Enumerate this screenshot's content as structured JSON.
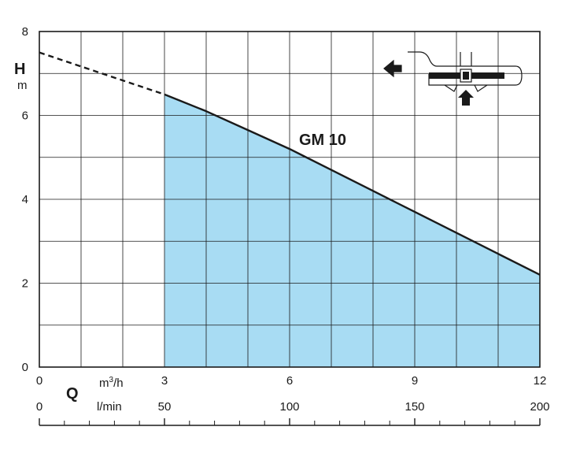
{
  "chart_data": {
    "type": "area",
    "series": [
      {
        "name": "GM 10",
        "dashed_part": {
          "x": [
            0,
            3
          ],
          "y": [
            7.5,
            6.5
          ]
        },
        "x": [
          3,
          4,
          5,
          6,
          7,
          8,
          9,
          10,
          11,
          12
        ],
        "y": [
          6.5,
          6.1,
          5.65,
          5.2,
          4.7,
          4.2,
          3.7,
          3.2,
          2.7,
          2.2
        ]
      }
    ],
    "shaded_range": [
      3,
      12
    ],
    "xlim": [
      0,
      12
    ],
    "ylim": [
      0,
      8
    ],
    "grid": true,
    "y_ticks": [
      0,
      2,
      4,
      6,
      8
    ],
    "x_ticks_m3h": [
      0,
      3,
      6,
      9,
      12
    ],
    "x_ticks_lmin": [
      0,
      50,
      100,
      150,
      200
    ],
    "y_axis_label": {
      "symbol": "H",
      "unit": "m"
    },
    "x_axis_label": {
      "symbol": "Q",
      "unit_m3h_base": "m",
      "unit_m3h_sup": "3",
      "unit_m3h_tail": "/h",
      "unit_lmin": "l/min"
    },
    "curve_label": "GM 10"
  },
  "colors": {
    "fill": "#a8dcf3",
    "line": "#1a1a1a",
    "grid": "#1a1a1a"
  },
  "icons": {
    "pump": "pump-impeller-schematic-icon"
  }
}
